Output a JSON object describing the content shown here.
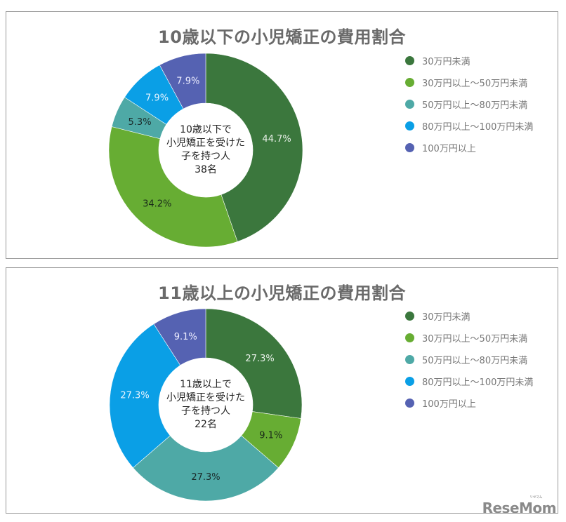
{
  "colors": {
    "under30": "#3b773d",
    "30to50": "#67ad33",
    "50to80": "#4ea9a6",
    "80to100": "#0a9fe6",
    "over100": "#5562b2"
  },
  "charts": [
    {
      "title": "10歳以下の小児矯正の費用割合",
      "center_lines": [
        "10歳以下で",
        "小児矯正を受けた",
        "子を持つ人",
        "38名"
      ],
      "legend": [
        {
          "label": "30万円未満",
          "color": "#3b773d"
        },
        {
          "label": "30万円以上～50万円未満",
          "color": "#67ad33"
        },
        {
          "label": "50万円以上～80万円未満",
          "color": "#4ea9a6"
        },
        {
          "label": "80万円以上～100万円未満",
          "color": "#0a9fe6"
        },
        {
          "label": "100万円以上",
          "color": "#5562b2"
        }
      ]
    },
    {
      "title": "11歳以上の小児矯正の費用割合",
      "center_lines": [
        "11歳以上で",
        "小児矯正を受けた",
        "子を持つ人",
        "22名"
      ],
      "legend": [
        {
          "label": "30万円未満",
          "color": "#3b773d"
        },
        {
          "label": "30万円以上～50万円未満",
          "color": "#67ad33"
        },
        {
          "label": "50万円以上～80万円未満",
          "color": "#4ea9a6"
        },
        {
          "label": "80万円以上～100万円未満",
          "color": "#0a9fe6"
        },
        {
          "label": "100万円以上",
          "color": "#5562b2"
        }
      ]
    }
  ],
  "chart_data": [
    {
      "type": "pie",
      "donut": true,
      "title": "10歳以下の小児矯正の費用割合",
      "center_label": "10歳以下で小児矯正を受けた子を持つ人 38名",
      "categories": [
        "30万円未満",
        "30万円以上～50万円未満",
        "50万円以上～80万円未満",
        "80万円以上～100万円未満",
        "100万円以上"
      ],
      "values": [
        44.7,
        34.2,
        5.3,
        7.9,
        7.9
      ],
      "labels": [
        "44.7%",
        "34.2%",
        "5.3%",
        "7.9%",
        "7.9%"
      ],
      "label_colors": [
        "#e8f0e8",
        "#1a2a1a",
        "#1a2a2a",
        "#e8f4ff",
        "#eeeeff"
      ],
      "colors": [
        "#3b773d",
        "#67ad33",
        "#4ea9a6",
        "#0a9fe6",
        "#5562b2"
      ],
      "legend_position": "right",
      "start_angle": 0,
      "direction": "clockwise"
    },
    {
      "type": "pie",
      "donut": true,
      "title": "11歳以上の小児矯正の費用割合",
      "center_label": "11歳以上で小児矯正を受けた子を持つ人 22名",
      "categories": [
        "30万円未満",
        "30万円以上～50万円未満",
        "50万円以上～80万円未満",
        "80万円以上～100万円未満",
        "100万円以上"
      ],
      "values": [
        27.3,
        9.1,
        27.3,
        27.3,
        9.1
      ],
      "labels": [
        "27.3%",
        "9.1%",
        "27.3%",
        "27.3%",
        "9.1%"
      ],
      "label_colors": [
        "#e8f0e8",
        "#1a2a1a",
        "#1a2a2a",
        "#e8f4ff",
        "#eeeeff"
      ],
      "colors": [
        "#3b773d",
        "#67ad33",
        "#4ea9a6",
        "#0a9fe6",
        "#5562b2"
      ],
      "legend_position": "right",
      "start_angle": 0,
      "direction": "clockwise"
    }
  ],
  "watermark": {
    "text": "ReseMom",
    "ruby": "リセマム"
  }
}
